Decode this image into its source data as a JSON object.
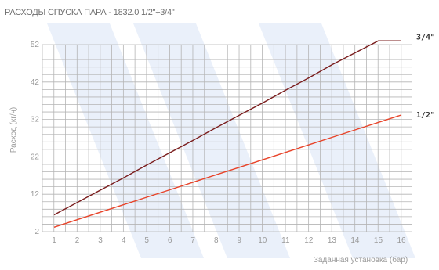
{
  "chart_data": {
    "type": "line",
    "title": "РАСХОДЫ СПУСКА ПАРА - 1832.0 1/2\"÷3/4\"",
    "xlabel": "Заданная установка (бар)",
    "ylabel": "Расход (кг/ч)",
    "x": [
      1,
      2,
      3,
      4,
      5,
      6,
      7,
      8,
      9,
      10,
      11,
      12,
      13,
      14,
      15,
      16
    ],
    "xlim": [
      1,
      16
    ],
    "ylim": [
      2,
      52
    ],
    "yticks": [
      2,
      12,
      22,
      32,
      42,
      52
    ],
    "grid": true,
    "series": [
      {
        "name": "3/4\"",
        "color": "#7b1e1e",
        "values": [
          6.5,
          9.8,
          13.1,
          16.4,
          19.8,
          23.1,
          26.4,
          29.8,
          33.1,
          36.4,
          39.8,
          43.1,
          46.6,
          49.8,
          53.0,
          56.0
        ]
      },
      {
        "name": "1/2\"",
        "color": "#e8442a",
        "values": [
          3.2,
          5.2,
          7.2,
          9.2,
          11.2,
          13.2,
          15.2,
          17.2,
          19.2,
          21.2,
          23.2,
          25.2,
          27.2,
          29.2,
          31.2,
          33.2
        ]
      }
    ]
  },
  "title_text": "РАСХОДЫ СПУСКА ПАРА - 1832.0 1/2\"÷3/4\""
}
